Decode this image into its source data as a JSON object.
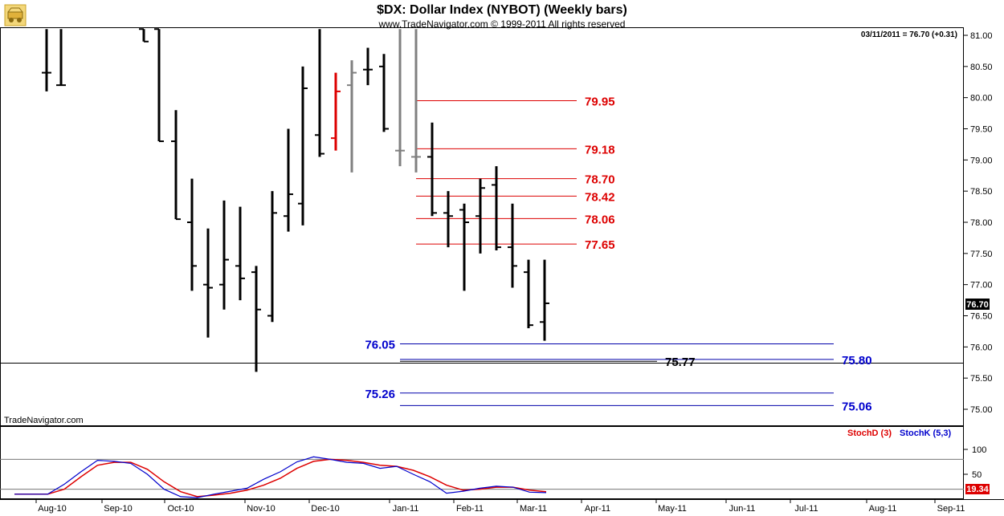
{
  "header": {
    "title": "$DX:  Dollar Index (NYBOT)  (Weekly bars)",
    "subtitle": "www.TradeNavigator.com © 1999-2011 All rights reserved",
    "last_readout": "03/11/2011 = 76.70 (+0.31)",
    "brand": "TradeNavigator.com",
    "logo_icon": "wagon-logo-icon"
  },
  "chart_data": {
    "type": "ohlc",
    "price_axis": {
      "min": 74.9,
      "max": 81.1,
      "ticks": [
        "81.00",
        "80.50",
        "80.00",
        "79.50",
        "79.00",
        "78.50",
        "78.00",
        "77.50",
        "77.00",
        "76.50",
        "76.00",
        "75.50",
        "75.00"
      ],
      "last_price_label": "76.70"
    },
    "x_axis": {
      "labels": [
        "Aug-10",
        "Sep-10",
        "Oct-10",
        "Nov-10",
        "Dec-10",
        "Jan-11",
        "Feb-11",
        "Mar-11",
        "Apr-11",
        "May-11",
        "Jun-11",
        "Jul-11",
        "Aug-11",
        "Sep-11"
      ]
    },
    "bars": [
      {
        "o": 80.4,
        "h": 81.1,
        "l": 80.1,
        "c": 80.4,
        "color": "#000000"
      },
      {
        "o": 80.2,
        "h": 81.1,
        "l": 80.2,
        "c": 80.2,
        "color": "#000000"
      },
      {
        "o": 81.1,
        "h": 81.1,
        "l": 80.9,
        "c": 80.9,
        "color": "#000000"
      },
      {
        "o": 81.1,
        "h": 81.1,
        "l": 79.3,
        "c": 79.3,
        "color": "#000000"
      },
      {
        "o": 79.3,
        "h": 79.8,
        "l": 78.05,
        "c": 78.05,
        "color": "#000000"
      },
      {
        "o": 78.0,
        "h": 78.7,
        "l": 76.9,
        "c": 77.3,
        "color": "#000000"
      },
      {
        "o": 77.0,
        "h": 77.9,
        "l": 76.15,
        "c": 76.95,
        "color": "#000000"
      },
      {
        "o": 77.0,
        "h": 78.35,
        "l": 76.6,
        "c": 77.4,
        "color": "#000000"
      },
      {
        "o": 77.3,
        "h": 78.25,
        "l": 76.75,
        "c": 77.1,
        "color": "#000000"
      },
      {
        "o": 77.2,
        "h": 77.3,
        "l": 75.6,
        "c": 76.6,
        "color": "#000000"
      },
      {
        "o": 76.5,
        "h": 78.5,
        "l": 76.4,
        "c": 78.15,
        "color": "#000000"
      },
      {
        "o": 78.1,
        "h": 79.5,
        "l": 77.85,
        "c": 78.45,
        "color": "#000000"
      },
      {
        "o": 78.3,
        "h": 80.5,
        "l": 77.95,
        "c": 80.15,
        "color": "#000000"
      },
      {
        "o": 79.4,
        "h": 81.1,
        "l": 79.05,
        "c": 79.1,
        "color": "#000000"
      },
      {
        "o": 79.35,
        "h": 80.4,
        "l": 79.15,
        "c": 80.1,
        "color": "#dd0000"
      },
      {
        "o": 80.2,
        "h": 80.6,
        "l": 78.8,
        "c": 80.4,
        "color": "#808080"
      },
      {
        "o": 80.45,
        "h": 80.8,
        "l": 80.2,
        "c": 80.45,
        "color": "#000000"
      },
      {
        "o": 80.5,
        "h": 80.7,
        "l": 79.45,
        "c": 79.5,
        "color": "#000000"
      },
      {
        "o": 79.15,
        "h": 81.1,
        "l": 78.9,
        "c": 79.15,
        "color": "#808080"
      },
      {
        "o": 79.05,
        "h": 81.1,
        "l": 78.8,
        "c": 79.05,
        "color": "#808080"
      },
      {
        "o": 79.05,
        "h": 79.6,
        "l": 78.1,
        "c": 78.15,
        "color": "#000000"
      },
      {
        "o": 78.15,
        "h": 78.5,
        "l": 77.6,
        "c": 78.1,
        "color": "#000000"
      },
      {
        "o": 78.2,
        "h": 78.3,
        "l": 76.9,
        "c": 78.0,
        "color": "#000000"
      },
      {
        "o": 78.1,
        "h": 78.7,
        "l": 77.5,
        "c": 78.55,
        "color": "#000000"
      },
      {
        "o": 78.6,
        "h": 78.9,
        "l": 77.55,
        "c": 77.6,
        "color": "#000000"
      },
      {
        "o": 77.6,
        "h": 78.3,
        "l": 76.95,
        "c": 77.3,
        "color": "#000000"
      },
      {
        "o": 77.2,
        "h": 77.4,
        "l": 76.3,
        "c": 76.35,
        "color": "#000000"
      },
      {
        "o": 76.4,
        "h": 77.4,
        "l": 76.1,
        "c": 76.7,
        "color": "#000000"
      }
    ],
    "levels_red": [
      "79.95",
      "79.18",
      "78.70",
      "78.42",
      "78.06",
      "77.65"
    ],
    "levels_blue_left": [
      "76.05",
      "75.26"
    ],
    "levels_blue_right": [
      "75.80",
      "75.06"
    ],
    "level_black": "75.77",
    "stoch": {
      "legend_d": "StochD (3)",
      "legend_k": "StochK (5,3)",
      "ticks": [
        "100",
        "50"
      ],
      "last_value": "19.34",
      "k": [
        10,
        10,
        10,
        30,
        55,
        78,
        76,
        72,
        50,
        20,
        5,
        3,
        10,
        16,
        22,
        40,
        55,
        75,
        85,
        80,
        74,
        72,
        62,
        66,
        50,
        35,
        12,
        16,
        22,
        26,
        24,
        14,
        13
      ],
      "d": [
        10,
        10,
        10,
        20,
        45,
        68,
        74,
        74,
        60,
        35,
        15,
        5,
        8,
        12,
        18,
        28,
        42,
        62,
        76,
        80,
        78,
        74,
        68,
        66,
        58,
        45,
        28,
        18,
        20,
        24,
        24,
        18,
        15
      ]
    }
  }
}
